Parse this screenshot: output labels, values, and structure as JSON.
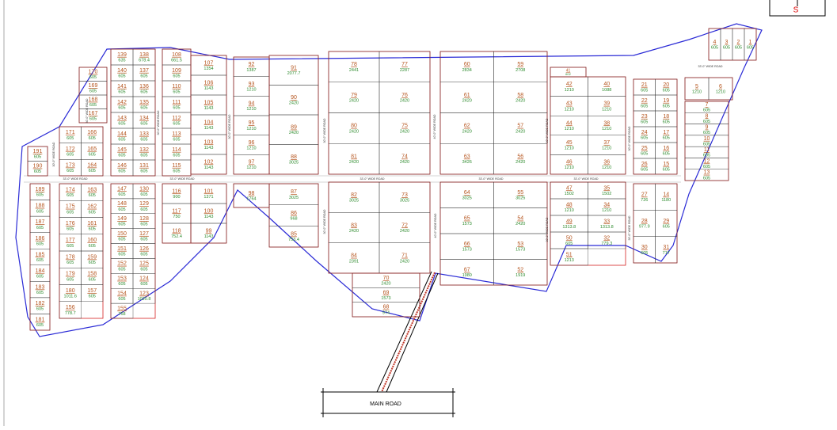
{
  "north": "S",
  "main_road": "MAIN ROAD",
  "road_labels": [
    "33'-0\" WIDE ROAD",
    "33'-0\" WIDE ROAD",
    "33'-0\" WIDE ROAD",
    "33'-0\" WIDE ROAD",
    "33'-0\" WIDE ROAD",
    "33'-0\" WIDE ROAD",
    "30'-0\" WIDE ROAD",
    "30'-0\" WIDE ROAD",
    "30'-0\" WIDE ROAD",
    "30'-0\" WIDE ROAD",
    "30'-0\" WIDE ROAD",
    "40'-0\" WIDE ROAD",
    "30'-0\" WIDE ROAD",
    "30'-0\" WIDE ROAD",
    "30'-0\" WIDE ROAD",
    "40'-0\" WIDE ROAD",
    "30'-0\" WIDE ROAD",
    "30'-0\" WIDE ROAD"
  ],
  "blocks": [
    {
      "plots": [
        {
          "no": "139",
          "area": "635"
        },
        {
          "no": "138",
          "area": "678.4"
        },
        {
          "no": "140",
          "area": "605"
        },
        {
          "no": "137",
          "area": "605"
        },
        {
          "no": "141",
          "area": "605"
        },
        {
          "no": "136",
          "area": "605"
        },
        {
          "no": "142",
          "area": "605"
        },
        {
          "no": "135",
          "area": "605"
        },
        {
          "no": "143",
          "area": "605"
        },
        {
          "no": "134",
          "area": "605"
        },
        {
          "no": "144",
          "area": "605"
        },
        {
          "no": "133",
          "area": "605"
        },
        {
          "no": "145",
          "area": "605"
        },
        {
          "no": "132",
          "area": "605"
        },
        {
          "no": "146",
          "area": "605"
        },
        {
          "no": "131",
          "area": "605"
        }
      ]
    },
    {
      "plots": [
        {
          "no": "147",
          "area": "605"
        },
        {
          "no": "130",
          "area": "605"
        },
        {
          "no": "148",
          "area": "605"
        },
        {
          "no": "129",
          "area": "605"
        },
        {
          "no": "149",
          "area": "605"
        },
        {
          "no": "128",
          "area": "605"
        },
        {
          "no": "150",
          "area": "605"
        },
        {
          "no": "127",
          "area": "605"
        },
        {
          "no": "151",
          "area": "605"
        },
        {
          "no": "126",
          "area": "605"
        },
        {
          "no": "152",
          "area": "605"
        },
        {
          "no": "125",
          "area": "605"
        },
        {
          "no": "153",
          "area": "605"
        },
        {
          "no": "124",
          "area": "605"
        },
        {
          "no": "154",
          "area": "605"
        },
        {
          "no": "123",
          "area": "1020.8"
        },
        {
          "no": "155",
          "area": "758"
        }
      ]
    },
    {
      "plots": [
        {
          "no": "108",
          "area": "661.5"
        },
        {
          "no": "109",
          "area": "605"
        },
        {
          "no": "110",
          "area": "605"
        },
        {
          "no": "111",
          "area": "605"
        },
        {
          "no": "112",
          "area": "605"
        },
        {
          "no": "113",
          "area": "605"
        },
        {
          "no": "114",
          "area": "605"
        },
        {
          "no": "115",
          "area": "605"
        }
      ]
    },
    {
      "plots": [
        {
          "no": "116",
          "area": "900"
        },
        {
          "no": "117",
          "area": "750"
        },
        {
          "no": "118",
          "area": "752.4"
        }
      ]
    },
    {
      "plots": [
        {
          "no": "107",
          "area": "1354"
        },
        {
          "no": "106",
          "area": "1143"
        },
        {
          "no": "105",
          "area": "1143"
        },
        {
          "no": "104",
          "area": "1143"
        },
        {
          "no": "103",
          "area": "1143"
        },
        {
          "no": "102",
          "area": "1143"
        }
      ]
    },
    {
      "plots": [
        {
          "no": "101",
          "area": "1371"
        },
        {
          "no": "100",
          "area": "1143"
        },
        {
          "no": "99",
          "area": "1143"
        }
      ]
    },
    {
      "plots": [
        {
          "no": "92",
          "area": "1387"
        },
        {
          "no": "93",
          "area": "1210"
        },
        {
          "no": "94",
          "area": "1210"
        },
        {
          "no": "95",
          "area": "1210"
        },
        {
          "no": "96",
          "area": "1210"
        },
        {
          "no": "97",
          "area": "1210"
        }
      ]
    },
    {
      "plots": [
        {
          "no": "98",
          "area": "1764"
        }
      ]
    },
    {
      "plots": [
        {
          "no": "91",
          "area": "2077.7"
        },
        {
          "no": "90",
          "area": "2420"
        },
        {
          "no": "89",
          "area": "2420"
        },
        {
          "no": "88",
          "area": "3025"
        }
      ]
    },
    {
      "plots": [
        {
          "no": "87",
          "area": "3025"
        },
        {
          "no": "86",
          "area": "968"
        },
        {
          "no": "85",
          "area": "753.4"
        }
      ]
    },
    {
      "plots": [
        {
          "no": "78",
          "area": "2441"
        },
        {
          "no": "77",
          "area": "2287"
        },
        {
          "no": "79",
          "area": "2420"
        },
        {
          "no": "76",
          "area": "2420"
        },
        {
          "no": "80",
          "area": "2420"
        },
        {
          "no": "75",
          "area": "2420"
        },
        {
          "no": "81",
          "area": "2420"
        },
        {
          "no": "74",
          "area": "2420"
        }
      ]
    },
    {
      "plots": [
        {
          "no": "82",
          "area": "3025"
        },
        {
          "no": "73",
          "area": "3025"
        },
        {
          "no": "83",
          "area": "2420"
        },
        {
          "no": "72",
          "area": "2420"
        },
        {
          "no": "84",
          "area": "2391"
        },
        {
          "no": "71",
          "area": "2420"
        }
      ]
    },
    {
      "plots": [
        {
          "no": "70",
          "area": "2420"
        },
        {
          "no": "69",
          "area": "1573"
        },
        {
          "no": "68",
          "area": "974"
        }
      ]
    },
    {
      "plots": [
        {
          "no": "60",
          "area": "2834"
        },
        {
          "no": "59",
          "area": "2708"
        },
        {
          "no": "61",
          "area": "2420"
        },
        {
          "no": "58",
          "area": "2420"
        },
        {
          "no": "62",
          "area": "2420"
        },
        {
          "no": "57",
          "area": "2420"
        },
        {
          "no": "63",
          "area": "3426"
        },
        {
          "no": "56",
          "area": "2420"
        }
      ]
    },
    {
      "plots": [
        {
          "no": "64",
          "area": "3025"
        },
        {
          "no": "55",
          "area": "3025"
        },
        {
          "no": "65",
          "area": "1573"
        },
        {
          "no": "54",
          "area": "2420"
        },
        {
          "no": "66",
          "area": "1573"
        },
        {
          "no": "53",
          "area": "1573"
        },
        {
          "no": "67",
          "area": "1980"
        },
        {
          "no": "52",
          "area": "1919"
        }
      ]
    },
    {
      "plots": [
        {
          "no": "41",
          "area": "602"
        }
      ]
    },
    {
      "plots": [
        {
          "no": "42",
          "area": "1210"
        },
        {
          "no": "40",
          "area": "1088"
        },
        {
          "no": "43",
          "area": "1210"
        },
        {
          "no": "39",
          "area": "1210"
        },
        {
          "no": "44",
          "area": "1210"
        },
        {
          "no": "38",
          "area": "1210"
        },
        {
          "no": "45",
          "area": "1210"
        },
        {
          "no": "37",
          "area": "1210"
        },
        {
          "no": "46",
          "area": "1210"
        },
        {
          "no": "36",
          "area": "1210"
        }
      ]
    },
    {
      "plots": [
        {
          "no": "47",
          "area": "1502"
        },
        {
          "no": "35",
          "area": "1502"
        },
        {
          "no": "48",
          "area": "1210"
        },
        {
          "no": "34",
          "area": "1210"
        },
        {
          "no": "49",
          "area": "1313.8"
        },
        {
          "no": "33",
          "area": "1313.8"
        },
        {
          "no": "50",
          "area": "605"
        },
        {
          "no": "32",
          "area": "779.3"
        },
        {
          "no": "51",
          "area": "1213"
        }
      ]
    },
    {
      "plots": [
        {
          "no": "21",
          "area": "605"
        },
        {
          "no": "20",
          "area": "605"
        },
        {
          "no": "22",
          "area": "605"
        },
        {
          "no": "19",
          "area": "605"
        },
        {
          "no": "23",
          "area": "605"
        },
        {
          "no": "18",
          "area": "605"
        },
        {
          "no": "24",
          "area": "605"
        },
        {
          "no": "17",
          "area": "605"
        },
        {
          "no": "25",
          "area": "605"
        },
        {
          "no": "16",
          "area": "605"
        },
        {
          "no": "26",
          "area": "605"
        },
        {
          "no": "15",
          "area": "605"
        }
      ]
    },
    {
      "plots": [
        {
          "no": "27",
          "area": "726"
        },
        {
          "no": "14",
          "area": "1180"
        },
        {
          "no": "28",
          "area": "977.9"
        },
        {
          "no": "29",
          "area": "605"
        },
        {
          "no": "30",
          "area": "605"
        },
        {
          "no": "31",
          "area": "717"
        }
      ]
    },
    {
      "plots": [
        {
          "no": "4",
          "area": "605"
        },
        {
          "no": "3",
          "area": "605"
        },
        {
          "no": "2",
          "area": "605"
        },
        {
          "no": "1",
          "area": "605"
        }
      ]
    },
    {
      "plots": [
        {
          "no": "5",
          "area": "1210"
        },
        {
          "no": "6",
          "area": "1210"
        }
      ]
    },
    {
      "plots": [
        {
          "no": "7",
          "area": "605"
        },
        {
          "no": "8",
          "area": "605"
        },
        {
          "no": "9",
          "area": "605"
        },
        {
          "no": "10",
          "area": "605"
        },
        {
          "no": "11",
          "area": "605"
        },
        {
          "no": "12",
          "area": "605"
        },
        {
          "no": "13",
          "area": "605"
        }
      ]
    },
    {
      "plots": [
        {
          "no": "170",
          "area": "605"
        },
        {
          "no": "169",
          "area": "605"
        },
        {
          "no": "168",
          "area": "605"
        },
        {
          "no": "167",
          "area": "605"
        }
      ]
    },
    {
      "plots": [
        {
          "no": "171",
          "area": "605"
        },
        {
          "no": "166",
          "area": "605"
        },
        {
          "no": "172",
          "area": "605"
        },
        {
          "no": "165",
          "area": "605"
        },
        {
          "no": "173",
          "area": "605"
        },
        {
          "no": "164",
          "area": "605"
        }
      ]
    },
    {
      "plots": [
        {
          "no": "191",
          "area": "605"
        },
        {
          "no": "190",
          "area": "605"
        }
      ]
    },
    {
      "plots": [
        {
          "no": "174",
          "area": "605"
        },
        {
          "no": "163",
          "area": "605"
        },
        {
          "no": "175",
          "area": "605"
        },
        {
          "no": "162",
          "area": "605"
        },
        {
          "no": "176",
          "area": "605"
        },
        {
          "no": "161",
          "area": "605"
        },
        {
          "no": "177",
          "area": "605"
        },
        {
          "no": "160",
          "area": "605"
        },
        {
          "no": "178",
          "area": "605"
        },
        {
          "no": "159",
          "area": "605"
        },
        {
          "no": "179",
          "area": "605"
        },
        {
          "no": "158",
          "area": "605"
        },
        {
          "no": "180",
          "area": "1011.6"
        },
        {
          "no": "157",
          "area": "605"
        },
        {
          "no": "156",
          "area": "778.7"
        }
      ]
    },
    {
      "plots": [
        {
          "no": "189",
          "area": "605"
        },
        {
          "no": "188",
          "area": "605"
        },
        {
          "no": "187",
          "area": "605"
        },
        {
          "no": "186",
          "area": "605"
        },
        {
          "no": "185",
          "area": "605"
        },
        {
          "no": "184",
          "area": "605"
        },
        {
          "no": "183",
          "area": "605"
        },
        {
          "no": "182",
          "area": "605"
        },
        {
          "no": "181",
          "area": "605"
        }
      ]
    }
  ]
}
